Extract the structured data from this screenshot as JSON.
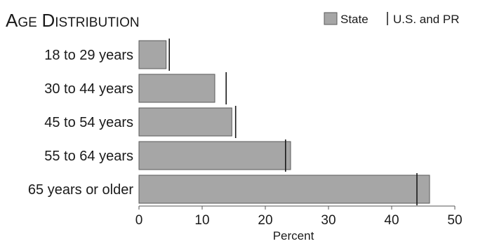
{
  "chart_data": {
    "type": "bar",
    "orientation": "horizontal",
    "title": "Age Distribution",
    "categories": [
      "18 to 29 years",
      "30 to 44 years",
      "45 to 54 years",
      "55 to 64 years",
      "65 years or older"
    ],
    "series": [
      {
        "name": "State",
        "values": [
          4.3,
          12.0,
          14.7,
          24.0,
          46.0
        ]
      }
    ],
    "reference": {
      "name": "U.S. and PR",
      "values": [
        4.8,
        13.8,
        15.3,
        23.2,
        44.0
      ]
    },
    "xlabel": "Percent",
    "xlim": [
      0,
      50
    ],
    "xticks": [
      "0",
      "10",
      "20",
      "30",
      "40",
      "50"
    ],
    "grid": false,
    "legend": "top-right",
    "colors": {
      "bar": "#a6a6a6",
      "bar_edge": "#5a5a5a",
      "marker": "#1a1a1a",
      "axis": "#555555"
    }
  }
}
